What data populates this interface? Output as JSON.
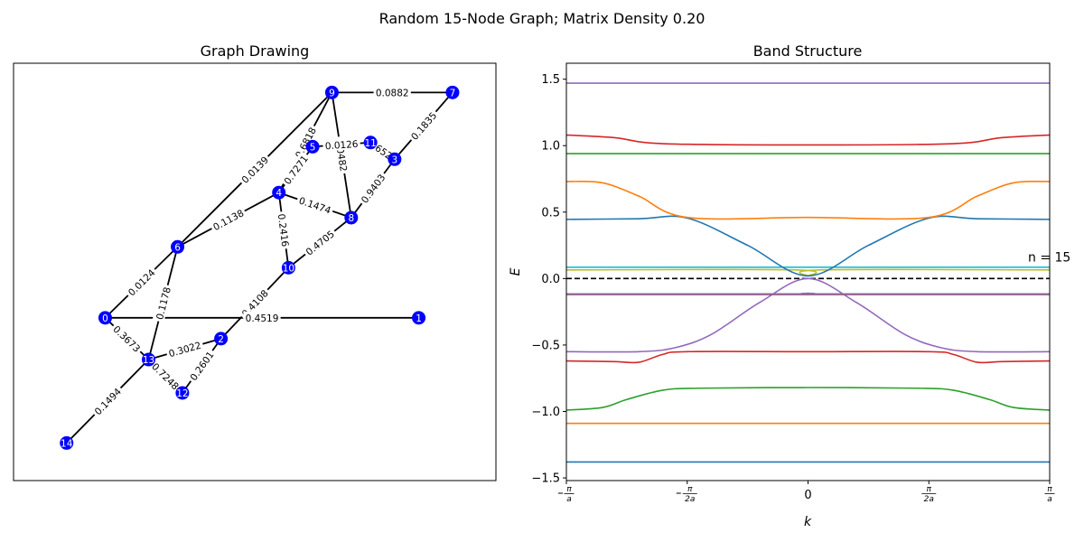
{
  "suptitle": "Random 15-Node Graph; Matrix Density 0.20",
  "colors": {
    "node": "#0000ff",
    "edge": "#000000",
    "fermi": "#000000",
    "bands": [
      "#1f77b4",
      "#ff7f0e",
      "#2ca02c",
      "#d62728",
      "#9467bd",
      "#8c564b",
      "#e377c2",
      "#7f7f7f",
      "#bcbd22",
      "#17becf"
    ]
  },
  "chart_data": [
    {
      "type": "graph",
      "title": "Graph Drawing",
      "nodes": [
        {
          "id": "0",
          "x": 0.19,
          "y": 0.39
        },
        {
          "id": "1",
          "x": 0.84,
          "y": 0.39
        },
        {
          "id": "2",
          "x": 0.43,
          "y": 0.34
        },
        {
          "id": "3",
          "x": 0.79,
          "y": 0.77
        },
        {
          "id": "4",
          "x": 0.55,
          "y": 0.69
        },
        {
          "id": "5",
          "x": 0.62,
          "y": 0.8
        },
        {
          "id": "6",
          "x": 0.34,
          "y": 0.56
        },
        {
          "id": "7",
          "x": 0.91,
          "y": 0.93
        },
        {
          "id": "8",
          "x": 0.7,
          "y": 0.63
        },
        {
          "id": "9",
          "x": 0.66,
          "y": 0.93
        },
        {
          "id": "10",
          "x": 0.57,
          "y": 0.51
        },
        {
          "id": "11",
          "x": 0.74,
          "y": 0.81
        },
        {
          "id": "12",
          "x": 0.35,
          "y": 0.21
        },
        {
          "id": "13",
          "x": 0.28,
          "y": 0.29
        },
        {
          "id": "14",
          "x": 0.11,
          "y": 0.09
        }
      ],
      "edges": [
        {
          "source": "9",
          "target": "7",
          "label": "0.0882"
        },
        {
          "source": "9",
          "target": "6",
          "label": "0.0139"
        },
        {
          "source": "9",
          "target": "4",
          "label": "0.6818"
        },
        {
          "source": "9",
          "target": "8",
          "label": "0.0482"
        },
        {
          "source": "5",
          "target": "11",
          "label": "0.0126"
        },
        {
          "source": "11",
          "target": "3",
          "label": "0.6524"
        },
        {
          "source": "7",
          "target": "3",
          "label": "0.1835"
        },
        {
          "source": "3",
          "target": "8",
          "label": "0.9403"
        },
        {
          "source": "4",
          "target": "5",
          "label": "0.7271"
        },
        {
          "source": "4",
          "target": "8",
          "label": "0.1474"
        },
        {
          "source": "4",
          "target": "6",
          "label": "0.1138"
        },
        {
          "source": "4",
          "target": "10",
          "label": "0.2416"
        },
        {
          "source": "8",
          "target": "10",
          "label": "0.4705"
        },
        {
          "source": "10",
          "target": "2",
          "label": "0.4108"
        },
        {
          "source": "6",
          "target": "0",
          "label": "0.0124"
        },
        {
          "source": "6",
          "target": "13",
          "label": "0.1178"
        },
        {
          "source": "0",
          "target": "1",
          "label": "0.4519"
        },
        {
          "source": "0",
          "target": "13",
          "label": "0.3673"
        },
        {
          "source": "13",
          "target": "2",
          "label": "0.3022"
        },
        {
          "source": "13",
          "target": "12",
          "label": "0.7248"
        },
        {
          "source": "2",
          "target": "12",
          "label": "0.2601"
        },
        {
          "source": "13",
          "target": "14",
          "label": "0.1494"
        }
      ]
    },
    {
      "type": "line",
      "title": "Band Structure",
      "xlabel": "k",
      "ylabel": "E",
      "xlim": [
        -1,
        1
      ],
      "ylim": [
        -1.52,
        1.62
      ],
      "xticks": [
        -1,
        -0.5,
        0,
        0.5,
        1
      ],
      "xtick_labels": [
        {
          "num": "π",
          "den": "a",
          "neg": true
        },
        {
          "num": "π",
          "den": "2a",
          "neg": true
        },
        {
          "text": "0"
        },
        {
          "num": "π",
          "den": "2a",
          "neg": false
        },
        {
          "num": "π",
          "den": "a",
          "neg": false
        }
      ],
      "yticks": [
        -1.5,
        -1.0,
        -0.5,
        0.0,
        0.5,
        1.0,
        1.5
      ],
      "ytick_labels": [
        "−1.5",
        "−1.0",
        "−0.5",
        "0.0",
        "0.5",
        "1.0",
        "1.5"
      ],
      "fermi_level": 0.0,
      "annotation": {
        "text": "n = 15",
        "x": 1.0,
        "y": 0.13
      },
      "series": [
        {
          "color_index": 0,
          "x": [
            -1,
            1
          ],
          "y": [
            -1.38,
            -1.38
          ]
        },
        {
          "color_index": 1,
          "x": [
            -1,
            1
          ],
          "y": [
            -1.09,
            -1.09
          ]
        },
        {
          "color_index": 2,
          "x": [
            -1,
            -0.85,
            -0.75,
            -0.6,
            -0.45,
            0,
            0.45,
            0.6,
            0.75,
            0.85,
            1
          ],
          "y": [
            -0.99,
            -0.97,
            -0.91,
            -0.84,
            -0.825,
            -0.82,
            -0.825,
            -0.84,
            -0.91,
            -0.97,
            -0.99
          ]
        },
        {
          "color_index": 3,
          "x": [
            -1,
            -0.8,
            -0.7,
            -0.6,
            -0.5,
            0,
            0.5,
            0.6,
            0.7,
            0.8,
            1
          ],
          "y": [
            -0.62,
            -0.625,
            -0.63,
            -0.57,
            -0.55,
            -0.55,
            -0.55,
            -0.57,
            -0.63,
            -0.625,
            -0.62
          ]
        },
        {
          "color_index": 4,
          "x": [
            -1,
            -0.7,
            -0.55,
            -0.4,
            -0.2,
            0,
            0.2,
            0.4,
            0.55,
            0.7,
            1
          ],
          "y": [
            -0.55,
            -0.55,
            -0.52,
            -0.42,
            -0.18,
            0.0,
            -0.18,
            -0.42,
            -0.52,
            -0.55,
            -0.55
          ]
        },
        {
          "color_index": 5,
          "x": [
            -1,
            1
          ],
          "y": [
            -0.12,
            -0.12
          ]
        },
        {
          "color_index": 4,
          "x": [
            -1,
            -0.06,
            0,
            0.06,
            1
          ],
          "y": [
            -0.115,
            -0.115,
            -0.11,
            -0.115,
            -0.115
          ]
        },
        {
          "color_index": 8,
          "x": [
            -1,
            -0.05,
            0,
            0.05,
            1
          ],
          "y": [
            0.065,
            0.065,
            0.02,
            0.065,
            0.065
          ]
        },
        {
          "color_index": 9,
          "x": [
            -1,
            1
          ],
          "y": [
            0.085,
            0.085
          ]
        },
        {
          "color_index": 0,
          "x": [
            -1,
            -0.7,
            -0.5,
            -0.25,
            0,
            0.25,
            0.5,
            0.7,
            1
          ],
          "y": [
            0.445,
            0.45,
            0.455,
            0.25,
            0.02,
            0.25,
            0.455,
            0.45,
            0.445
          ]
        },
        {
          "color_index": 1,
          "x": [
            -1,
            -0.85,
            -0.7,
            -0.5,
            0,
            0.5,
            0.7,
            0.85,
            1
          ],
          "y": [
            0.73,
            0.72,
            0.62,
            0.46,
            0.46,
            0.46,
            0.62,
            0.72,
            0.73
          ]
        },
        {
          "color_index": 2,
          "x": [
            -1,
            1
          ],
          "y": [
            0.94,
            0.94
          ]
        },
        {
          "color_index": 3,
          "x": [
            -1,
            -0.8,
            -0.6,
            0,
            0.6,
            0.8,
            1
          ],
          "y": [
            1.08,
            1.06,
            1.015,
            1.005,
            1.015,
            1.06,
            1.08
          ]
        },
        {
          "color_index": 4,
          "x": [
            -1,
            1
          ],
          "y": [
            1.47,
            1.47
          ]
        }
      ]
    }
  ]
}
